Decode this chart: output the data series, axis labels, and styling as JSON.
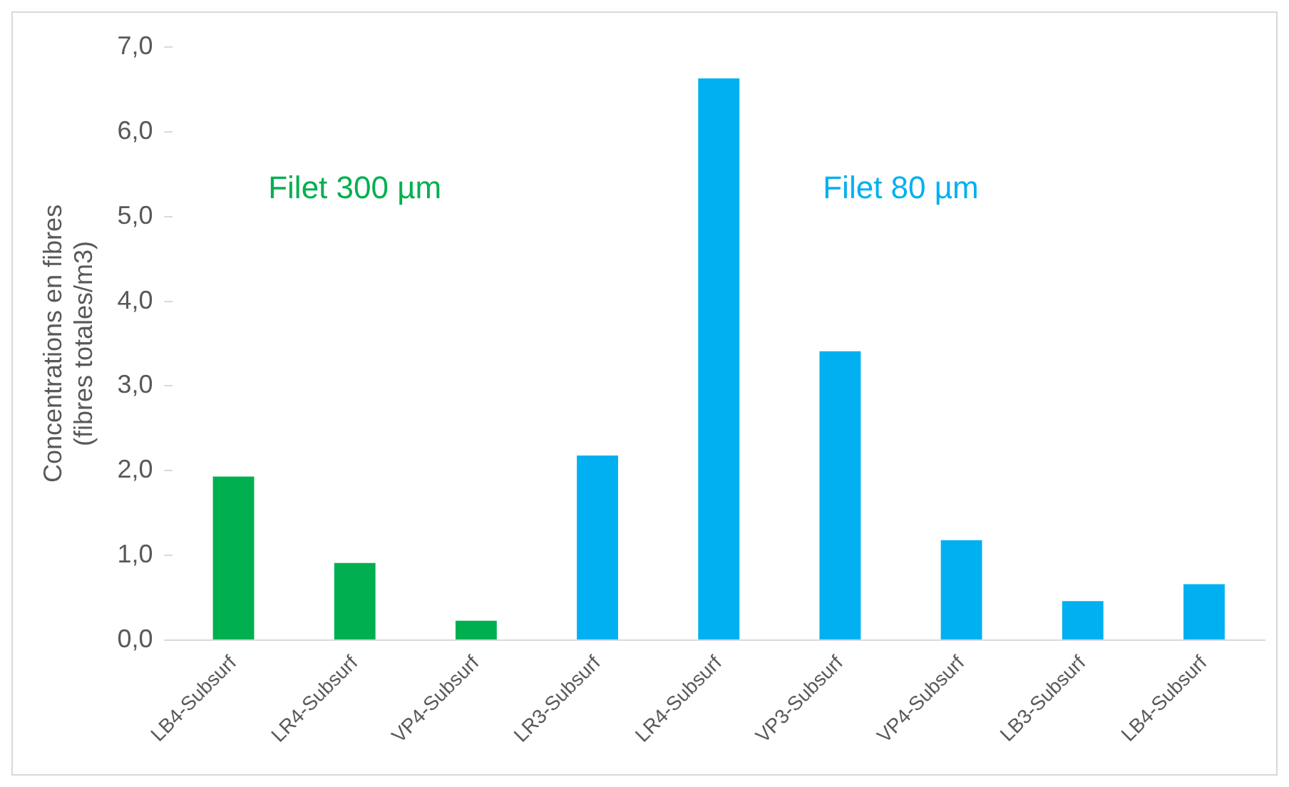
{
  "chart_data": {
    "type": "bar",
    "ylabel": "Concentrations en fibres\n(fibres totales/m3)",
    "categories": [
      "LB4-Subsurf",
      "LR4-Subsurf",
      "VP4-Subsurf",
      "LR3-Subsurf",
      "LR4-Subsurf",
      "VP3-Subsurf",
      "VP4-Subsurf",
      "LB3-Subsurf",
      "LB4-Subsurf"
    ],
    "series": [
      {
        "name": "Filet 300 µm",
        "color": "#00b050",
        "values": [
          1.93,
          0.91,
          0.23,
          null,
          null,
          null,
          null,
          null,
          null
        ]
      },
      {
        "name": "Filet 80 µm",
        "color": "#00b0f0",
        "values": [
          null,
          null,
          null,
          2.18,
          6.63,
          3.41,
          1.18,
          0.46,
          0.66
        ]
      }
    ],
    "ylim": [
      0,
      7
    ],
    "yticks": [
      {
        "value": 0,
        "label": "0,0"
      },
      {
        "value": 1,
        "label": "1,0"
      },
      {
        "value": 2,
        "label": "2,0"
      },
      {
        "value": 3,
        "label": "3,0"
      },
      {
        "value": 4,
        "label": "4,0"
      },
      {
        "value": 5,
        "label": "5,0"
      },
      {
        "value": 6,
        "label": "6,0"
      },
      {
        "value": 7,
        "label": "7,0"
      }
    ],
    "grid": false,
    "legend": false
  }
}
